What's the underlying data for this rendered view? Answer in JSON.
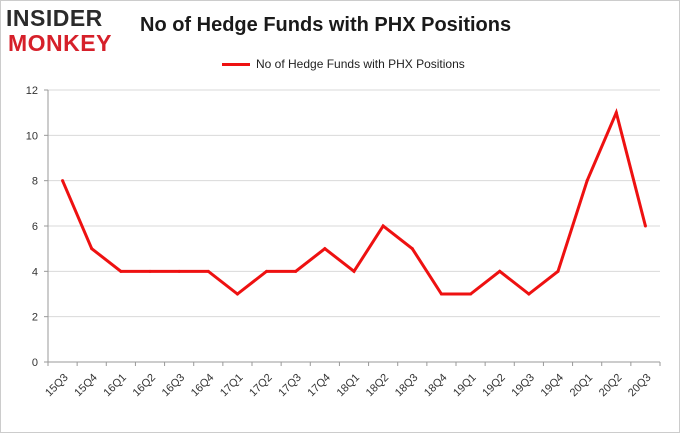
{
  "logo": {
    "line1": "INSIDER",
    "line2": "MONKEY"
  },
  "chart_data": {
    "type": "line",
    "title": "No of Hedge Funds with PHX Positions",
    "xlabel": "",
    "ylabel": "",
    "categories": [
      "15Q3",
      "15Q4",
      "16Q1",
      "16Q2",
      "16Q3",
      "16Q4",
      "17Q1",
      "17Q2",
      "17Q3",
      "17Q4",
      "18Q1",
      "18Q2",
      "18Q3",
      "18Q4",
      "19Q1",
      "19Q2",
      "19Q3",
      "19Q4",
      "20Q1",
      "20Q2",
      "20Q3"
    ],
    "series": [
      {
        "name": "No of Hedge Funds with PHX Positions",
        "color": "#ee1111",
        "values": [
          8,
          5,
          4,
          4,
          4,
          4,
          3,
          4,
          4,
          5,
          4,
          6,
          5,
          3,
          3,
          4,
          3,
          4,
          8,
          11,
          6
        ]
      }
    ],
    "ylim": [
      0,
      12
    ],
    "yticks": [
      0,
      2,
      4,
      6,
      8,
      10,
      12
    ],
    "grid": true,
    "legend_position": "top-center"
  }
}
